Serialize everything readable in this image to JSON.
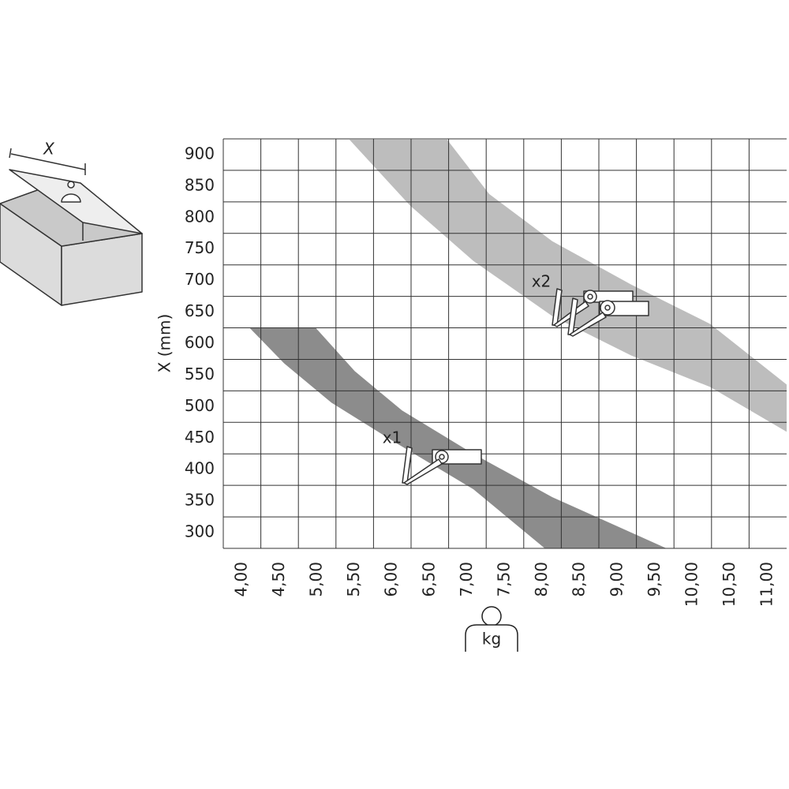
{
  "chart_data": {
    "type": "band",
    "y_label": "X (mm)",
    "x_label": "kg",
    "diagram_label": "X",
    "xlim": [
      3.75,
      11.25
    ],
    "ylim": [
      275,
      925
    ],
    "xticks": [
      {
        "value": 4.0,
        "label": "4,00"
      },
      {
        "value": 4.5,
        "label": "4,50"
      },
      {
        "value": 5.0,
        "label": "5,00"
      },
      {
        "value": 5.5,
        "label": "5,50"
      },
      {
        "value": 6.0,
        "label": "6,00"
      },
      {
        "value": 6.5,
        "label": "6,50"
      },
      {
        "value": 7.0,
        "label": "7,00"
      },
      {
        "value": 7.5,
        "label": "7,50"
      },
      {
        "value": 8.0,
        "label": "8,00"
      },
      {
        "value": 8.5,
        "label": "8,50"
      },
      {
        "value": 9.0,
        "label": "9,00"
      },
      {
        "value": 9.5,
        "label": "9,50"
      },
      {
        "value": 10.0,
        "label": "10,00"
      },
      {
        "value": 10.5,
        "label": "10,50"
      },
      {
        "value": 11.0,
        "label": "11,00"
      }
    ],
    "yticks": [
      300,
      350,
      400,
      450,
      500,
      550,
      600,
      650,
      700,
      750,
      800,
      850,
      900
    ],
    "grid": true,
    "series": [
      {
        "name": "x1",
        "color": "#8c8c8c",
        "lower": {
          "x": [
            4.1,
            4.56,
            5.19,
            6.03,
            7.08,
            8.03
          ],
          "values": [
            625,
            568.75,
            506.25,
            443.75,
            368.75,
            275
          ]
        },
        "upper": {
          "x": [
            4.98,
            5.5,
            6.13,
            7.08,
            8.13,
            9.65
          ],
          "values": [
            625,
            556.25,
            493.75,
            425,
            356.25,
            275
          ]
        }
      },
      {
        "name": "x2",
        "color": "#bdbdbd",
        "lower": {
          "x": [
            5.43,
            6.24,
            7.08,
            8.13,
            9.18,
            10.23,
            11.25
          ],
          "values": [
            923.75,
            818.75,
            731.25,
            643.75,
            581.25,
            531.25,
            460
          ]
        },
        "upper": {
          "x": [
            6.73,
            7.29,
            8.13,
            9.18,
            10.23,
            11.25
          ],
          "values": [
            923.75,
            837.5,
            762.5,
            693.75,
            631.25,
            535
          ]
        }
      }
    ]
  }
}
